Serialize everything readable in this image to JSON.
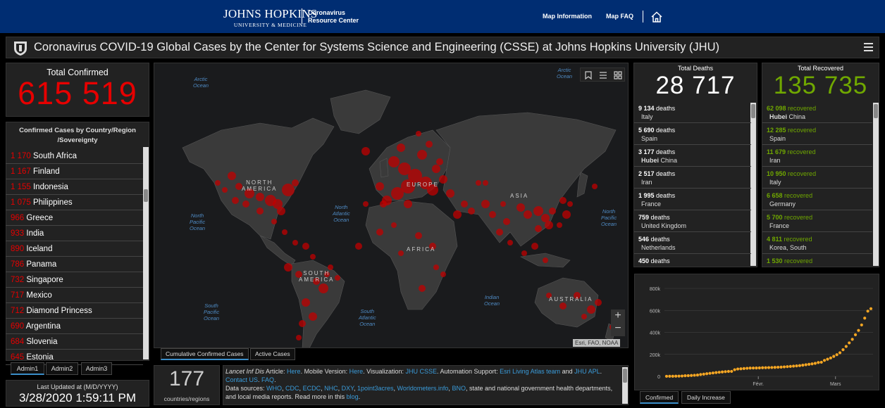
{
  "topbar": {
    "logo_line1": "JOHNS HOPKINS",
    "logo_line2": "UNIVERSITY & MEDICINE",
    "crc_line1": "Coronavirus",
    "crc_line2": "Resource Center",
    "link_map_info": "Map Information",
    "link_map_faq": "Map FAQ"
  },
  "header": {
    "title": "Coronavirus COVID-19 Global Cases by the Center for Systems Science and Engineering (CSSE) at Johns Hopkins University (JHU)"
  },
  "total_confirmed": {
    "label": "Total Confirmed",
    "value": "615 519"
  },
  "country_list": {
    "heading_line1": "Confirmed Cases by Country/Region",
    "heading_line2": "/Sovereignty",
    "rows": [
      {
        "count": "1 170",
        "name": "South Africa"
      },
      {
        "count": "1 167",
        "name": "Finland"
      },
      {
        "count": "1 155",
        "name": "Indonesia"
      },
      {
        "count": "1 075",
        "name": "Philippines"
      },
      {
        "count": "966",
        "name": "Greece"
      },
      {
        "count": "933",
        "name": "India"
      },
      {
        "count": "890",
        "name": "Iceland"
      },
      {
        "count": "786",
        "name": "Panama"
      },
      {
        "count": "732",
        "name": "Singapore"
      },
      {
        "count": "717",
        "name": "Mexico"
      },
      {
        "count": "712",
        "name": "Diamond Princess"
      },
      {
        "count": "690",
        "name": "Argentina"
      },
      {
        "count": "684",
        "name": "Slovenia"
      },
      {
        "count": "645",
        "name": "Estonia"
      }
    ]
  },
  "admin_tabs": [
    "Admin1",
    "Admin2",
    "Admin3"
  ],
  "last_updated": {
    "label": "Last Updated at (M/D/YYYY)",
    "value": "3/28/2020 1:59:11 PM"
  },
  "map": {
    "oceans": {
      "arctic_left": [
        "Arctic",
        "Ocean"
      ],
      "arctic_right": [
        "Arctic",
        "Ocean"
      ],
      "north_pacific_left": [
        "North",
        "Pacific",
        "Ocean"
      ],
      "north_atlantic": [
        "North",
        "Atlantic",
        "Ocean"
      ],
      "north_pacific_right": [
        "North",
        "Pacific",
        "Ocean"
      ],
      "south_pacific": [
        "South",
        "Pacific",
        "Ocean"
      ],
      "south_atlantic": [
        "South",
        "Atlantic",
        "Ocean"
      ],
      "indian": [
        "Indian",
        "Ocean"
      ]
    },
    "continents": {
      "north_america": [
        "NORTH",
        "AMERICA"
      ],
      "south_america": [
        "SOUTH",
        "AMERICA"
      ],
      "europe": "EUROPE",
      "africa": "AFRICA",
      "asia": "ASIA",
      "australia": "AUSTRALIA"
    },
    "zoom_in": "+",
    "zoom_out": "−",
    "attribution": "Esri, FAO, NOAA",
    "tabs": [
      "Cumulative Confirmed Cases",
      "Active Cases"
    ],
    "tool_icons": [
      "bookmark-icon",
      "list-icon",
      "grid-icon"
    ]
  },
  "countries_count": {
    "value": "177",
    "label": "countries/regions"
  },
  "info": {
    "article_prefix": "Lancet Inf Dis",
    "article_word": " Article: ",
    "here1": "Here",
    "mobile": ". Mobile Version: ",
    "here2": "Here",
    "viz": ". Visualization: ",
    "jhu_csse": "JHU CSSE",
    "auto": ". Automation Support: ",
    "esri": "Esri Living Atlas team",
    "and": " and ",
    "jhu_apl": "JHU APL",
    "dot": ". ",
    "contact": "Contact US",
    "dot2": ". ",
    "faq": "FAQ",
    "dot3": ".",
    "sources_label": "Data sources: ",
    "sources": [
      "WHO",
      "CDC",
      "ECDC",
      "NHC",
      "DXY",
      "1point3acres",
      "Worldometers.info",
      "BNO"
    ],
    "sources_tail": ", state and national government health departments, and local media reports.  Read more in this ",
    "blog": "blog",
    "end": "."
  },
  "deaths": {
    "label": "Total Deaths",
    "value": "28 717",
    "rows": [
      {
        "n": "9 134",
        "unit": "deaths",
        "bold": "",
        "place": "Italy"
      },
      {
        "n": "5 690",
        "unit": "deaths",
        "bold": "",
        "place": "Spain"
      },
      {
        "n": "3 177",
        "unit": "deaths",
        "bold": "Hubei",
        "place": "China"
      },
      {
        "n": "2 517",
        "unit": "deaths",
        "bold": "",
        "place": "Iran"
      },
      {
        "n": "1 995",
        "unit": "deaths",
        "bold": "",
        "place": "France"
      },
      {
        "n": "759",
        "unit": "deaths",
        "bold": "",
        "place": "United Kingdom"
      },
      {
        "n": "546",
        "unit": "deaths",
        "bold": "",
        "place": "Netherlands"
      },
      {
        "n": "450",
        "unit": "deaths",
        "bold": "",
        "place": ""
      }
    ]
  },
  "recovered": {
    "label": "Total Recovered",
    "value": "135 735",
    "rows": [
      {
        "n": "62 098",
        "unit": "recovered",
        "bold": "Hubei",
        "place": "China"
      },
      {
        "n": "12 285",
        "unit": "recovered",
        "bold": "",
        "place": "Spain"
      },
      {
        "n": "11 679",
        "unit": "recovered",
        "bold": "",
        "place": "Iran"
      },
      {
        "n": "10 950",
        "unit": "recovered",
        "bold": "",
        "place": "Italy"
      },
      {
        "n": "6 658",
        "unit": "recovered",
        "bold": "",
        "place": "Germany"
      },
      {
        "n": "5 700",
        "unit": "recovered",
        "bold": "",
        "place": "France"
      },
      {
        "n": "4 811",
        "unit": "recovered",
        "bold": "",
        "place": "Korea, South"
      },
      {
        "n": "1 530",
        "unit": "recovered",
        "bold": "",
        "place": ""
      }
    ]
  },
  "chart_tabs": [
    "Confirmed",
    "Daily Increase"
  ],
  "colors": {
    "confirmed": "#e60000",
    "recovered": "#70a800",
    "chart_point": "#f5a623",
    "link": "#3a9bd9",
    "topbar": "#002d72"
  },
  "chart_data": {
    "type": "line",
    "title": "",
    "xlabel": "",
    "ylabel": "",
    "ylim": [
      0,
      800000
    ],
    "yticks": [
      "0",
      "200k",
      "400k",
      "600k",
      "800k"
    ],
    "xticks": [
      "Févr.",
      "Mars"
    ],
    "series": [
      {
        "values": [
          555,
          654,
          941,
          1434,
          2118,
          2927,
          5578,
          6166,
          8234,
          9927,
          12038,
          16787,
          19881,
          23892,
          27635,
          30794,
          34391,
          37120,
          40150,
          42762,
          44802,
          45221,
          60368,
          66885,
          69030,
          71224,
          73258,
          75136,
          75639,
          76197,
          76819,
          78572,
          78958,
          79561,
          80406,
          81388,
          82746,
          84112,
          86011,
          88369,
          90306,
          92840,
          95120,
          97886,
          101801,
          105847,
          109821,
          113590,
          118620,
          125875,
          128352,
          145205,
          156101,
          167454,
          181574,
          197102,
          214821,
          242570,
          272208,
          304507,
          336953,
          378235,
          418045,
          467653,
          529591,
          593291,
          615519
        ]
      }
    ]
  }
}
